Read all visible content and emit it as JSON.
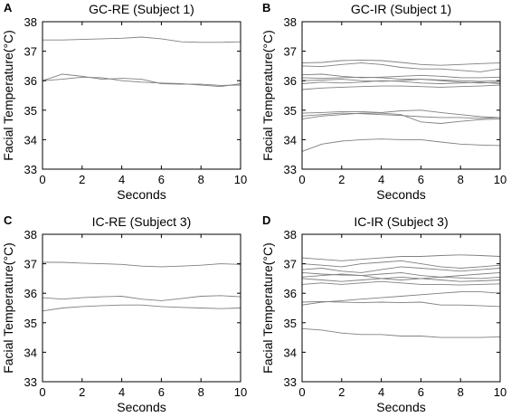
{
  "chart_data": [
    {
      "type": "line",
      "panel_label": "A",
      "title": "GC-RE (Subject 1)",
      "xlabel": "Seconds",
      "ylabel": "Facial Temperature(°C)",
      "xlim": [
        0,
        10
      ],
      "ylim": [
        33,
        38
      ],
      "xticks": [
        0,
        2,
        4,
        6,
        8,
        10
      ],
      "yticks": [
        33,
        34,
        35,
        36,
        37,
        38
      ],
      "x": [
        0,
        1,
        2,
        3,
        4,
        5,
        6,
        7,
        8,
        9,
        10
      ],
      "series": [
        {
          "values": [
            37.38,
            37.38,
            37.4,
            37.42,
            37.44,
            37.48,
            37.42,
            37.32,
            37.3,
            37.3,
            37.32
          ]
        },
        {
          "values": [
            36.0,
            36.22,
            36.15,
            36.05,
            36.08,
            36.05,
            35.9,
            35.88,
            35.88,
            35.84,
            35.85
          ]
        },
        {
          "values": [
            36.0,
            36.05,
            36.12,
            36.1,
            36.0,
            35.95,
            35.92,
            35.9,
            35.85,
            35.8,
            35.9
          ]
        }
      ]
    },
    {
      "type": "line",
      "panel_label": "B",
      "title": "GC-IR (Subject 1)",
      "xlabel": "Seconds",
      "ylabel": "Facial Temperature(°C)",
      "xlim": [
        0,
        10
      ],
      "ylim": [
        33,
        38
      ],
      "xticks": [
        0,
        2,
        4,
        6,
        8,
        10
      ],
      "yticks": [
        33,
        34,
        35,
        36,
        37,
        38
      ],
      "x": [
        0,
        1,
        2,
        3,
        4,
        5,
        6,
        7,
        8,
        9,
        10
      ],
      "series": [
        {
          "values": [
            36.6,
            36.62,
            36.68,
            36.7,
            36.68,
            36.62,
            36.55,
            36.52,
            36.55,
            36.58,
            36.6
          ]
        },
        {
          "values": [
            36.5,
            36.48,
            36.55,
            36.6,
            36.55,
            36.45,
            36.4,
            36.4,
            36.35,
            36.3,
            36.4
          ]
        },
        {
          "values": [
            36.2,
            36.22,
            36.15,
            36.1,
            36.12,
            36.15,
            36.18,
            36.15,
            36.1,
            36.1,
            36.12
          ]
        },
        {
          "values": [
            36.1,
            36.08,
            36.1,
            36.12,
            36.1,
            36.05,
            36.05,
            36.02,
            36.0,
            35.98,
            36.0
          ]
        },
        {
          "values": [
            36.0,
            36.02,
            36.05,
            36.0,
            35.98,
            36.0,
            36.05,
            36.0,
            35.95,
            35.92,
            35.95
          ]
        },
        {
          "values": [
            35.9,
            35.95,
            35.92,
            35.95,
            36.0,
            35.98,
            35.92,
            35.9,
            35.92,
            35.95,
            35.9
          ]
        },
        {
          "values": [
            35.7,
            35.75,
            35.78,
            35.8,
            35.82,
            35.82,
            35.8,
            35.78,
            35.8,
            35.82,
            35.85
          ]
        },
        {
          "values": [
            34.9,
            34.92,
            34.95,
            34.95,
            34.92,
            34.98,
            35.0,
            34.92,
            34.85,
            34.78,
            34.75
          ]
        },
        {
          "values": [
            34.8,
            34.85,
            34.9,
            34.88,
            34.85,
            34.82,
            34.78,
            34.75,
            34.75,
            34.72,
            34.75
          ]
        },
        {
          "values": [
            34.7,
            34.8,
            34.85,
            34.9,
            34.9,
            34.85,
            34.6,
            34.55,
            34.62,
            34.68,
            34.7
          ]
        },
        {
          "values": [
            33.6,
            33.85,
            33.95,
            34.0,
            34.02,
            34.0,
            34.0,
            33.92,
            33.85,
            33.82,
            33.8
          ]
        }
      ]
    },
    {
      "type": "line",
      "panel_label": "C",
      "title": "IC-RE (Subject 3)",
      "xlabel": "Seconds",
      "ylabel": "Facial Temperature(°C)",
      "xlim": [
        0,
        10
      ],
      "ylim": [
        33,
        38
      ],
      "xticks": [
        0,
        2,
        4,
        6,
        8,
        10
      ],
      "yticks": [
        33,
        34,
        35,
        36,
        37,
        38
      ],
      "x": [
        0,
        1,
        2,
        3,
        4,
        5,
        6,
        7,
        8,
        9,
        10
      ],
      "series": [
        {
          "values": [
            37.05,
            37.05,
            37.02,
            37.0,
            36.98,
            36.92,
            36.9,
            36.92,
            36.95,
            37.0,
            36.98
          ]
        },
        {
          "values": [
            35.85,
            35.8,
            35.85,
            35.88,
            35.9,
            35.8,
            35.75,
            35.82,
            35.9,
            35.92,
            35.88
          ]
        },
        {
          "values": [
            35.4,
            35.5,
            35.55,
            35.58,
            35.6,
            35.6,
            35.55,
            35.52,
            35.5,
            35.48,
            35.5
          ]
        }
      ]
    },
    {
      "type": "line",
      "panel_label": "D",
      "title": "IC-IR (Subject 3)",
      "xlabel": "Seconds",
      "ylabel": "Facial Temperature(°C)",
      "xlim": [
        0,
        10
      ],
      "ylim": [
        33,
        38
      ],
      "xticks": [
        0,
        2,
        4,
        6,
        8,
        10
      ],
      "yticks": [
        33,
        34,
        35,
        36,
        37,
        38
      ],
      "x": [
        0,
        1,
        2,
        3,
        4,
        5,
        6,
        7,
        8,
        9,
        10
      ],
      "series": [
        {
          "values": [
            37.2,
            37.15,
            37.1,
            37.15,
            37.2,
            37.25,
            37.25,
            37.28,
            37.3,
            37.28,
            37.25
          ]
        },
        {
          "values": [
            37.0,
            36.95,
            36.9,
            37.0,
            37.05,
            37.1,
            37.0,
            36.9,
            36.85,
            36.9,
            36.95
          ]
        },
        {
          "values": [
            36.8,
            36.85,
            36.75,
            36.7,
            36.8,
            36.9,
            36.85,
            36.8,
            36.75,
            36.8,
            36.85
          ]
        },
        {
          "values": [
            36.7,
            36.65,
            36.62,
            36.6,
            36.65,
            36.7,
            36.6,
            36.55,
            36.6,
            36.65,
            36.7
          ]
        },
        {
          "values": [
            36.55,
            36.6,
            36.65,
            36.6,
            36.5,
            36.45,
            36.5,
            36.55,
            36.52,
            36.5,
            36.55
          ]
        },
        {
          "values": [
            36.5,
            36.45,
            36.4,
            36.45,
            36.5,
            36.55,
            36.5,
            36.45,
            36.4,
            36.42,
            36.45
          ]
        },
        {
          "values": [
            36.3,
            36.35,
            36.3,
            36.35,
            36.4,
            36.35,
            36.3,
            36.3,
            36.28,
            36.3,
            36.32
          ]
        },
        {
          "values": [
            35.6,
            35.7,
            35.75,
            35.8,
            35.85,
            35.9,
            35.95,
            36.0,
            36.05,
            36.05,
            36.0
          ]
        },
        {
          "values": [
            35.7,
            35.72,
            35.7,
            35.68,
            35.7,
            35.68,
            35.7,
            35.6,
            35.6,
            35.58,
            35.55
          ]
        },
        {
          "values": [
            34.8,
            34.75,
            34.65,
            34.6,
            34.6,
            34.55,
            34.55,
            34.5,
            34.5,
            34.5,
            34.52
          ]
        }
      ]
    }
  ]
}
